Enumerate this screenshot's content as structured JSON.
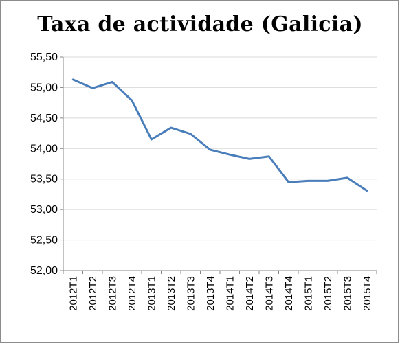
{
  "chart_data": {
    "type": "line",
    "title": "Taxa de actividade (Galicia)",
    "xlabel": "",
    "ylabel": "",
    "categories": [
      "2012T1",
      "2012T2",
      "2012T3",
      "2012T4",
      "2013T1",
      "2013T2",
      "2013T3",
      "2013T4",
      "2014T1",
      "2014T2",
      "2014T3",
      "2014T4",
      "2015T1",
      "2015T2",
      "2015T3",
      "2015T4"
    ],
    "series": [
      {
        "values": [
          55.13,
          54.99,
          55.09,
          54.79,
          54.15,
          54.34,
          54.24,
          53.98,
          53.9,
          53.83,
          53.87,
          53.45,
          53.47,
          53.47,
          53.52,
          53.31
        ]
      }
    ],
    "ylim": [
      52.0,
      55.5
    ],
    "yticks": [
      "52,00",
      "52,50",
      "53,00",
      "53,50",
      "54,00",
      "54,50",
      "55,00",
      "55,50"
    ],
    "grid": true,
    "legend": "none",
    "line_color": "#4a7ebb",
    "grid_color": "#d9d9d9",
    "axis_color": "#868686"
  }
}
